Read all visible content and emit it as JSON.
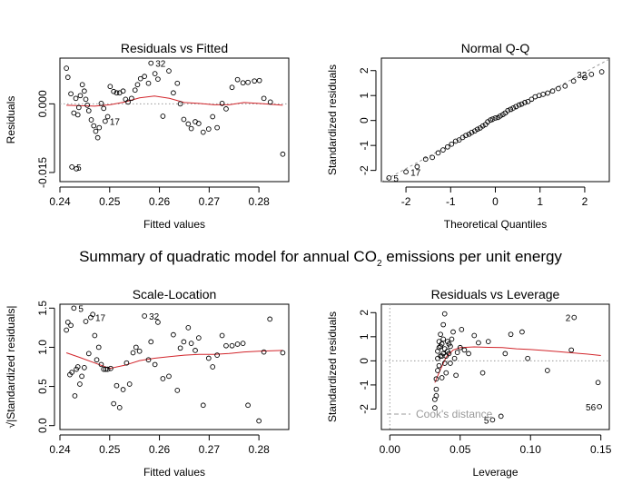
{
  "figure": {
    "title_prefix": "Summary of quadratic model for annual CO",
    "title_subscript": "2",
    "title_suffix": " emissions per unit energy"
  },
  "chart_data": [
    {
      "type": "scatter",
      "title": "Residuals vs Fitted",
      "xlabel": "Fitted values",
      "ylabel": "Residuals",
      "xlim": [
        0.24,
        0.286
      ],
      "ylim": [
        -0.017,
        0.01
      ],
      "xticks": [
        0.24,
        0.25,
        0.26,
        0.27,
        0.28
      ],
      "xtick_labels": [
        "0.24",
        "0.25",
        "0.26",
        "0.27",
        "0.28"
      ],
      "yticks": [
        0.0,
        -0.015
      ],
      "ytick_labels": [
        "0.000",
        "-0.015"
      ],
      "x": [
        0.2413,
        0.2416,
        0.2422,
        0.2424,
        0.2428,
        0.2432,
        0.2433,
        0.2436,
        0.2438,
        0.2441,
        0.2445,
        0.2449,
        0.2452,
        0.2455,
        0.2458,
        0.2463,
        0.2468,
        0.2472,
        0.2476,
        0.2479,
        0.2483,
        0.2488,
        0.2491,
        0.2496,
        0.2501,
        0.2508,
        0.2514,
        0.252,
        0.2527,
        0.2532,
        0.2537,
        0.2544,
        0.2551,
        0.2556,
        0.2562,
        0.257,
        0.2578,
        0.2583,
        0.2591,
        0.2597,
        0.2607,
        0.2619,
        0.2628,
        0.2636,
        0.2642,
        0.2649,
        0.2658,
        0.2664,
        0.2672,
        0.2679,
        0.2688,
        0.2699,
        0.2707,
        0.2716,
        0.2726,
        0.2734,
        0.2746,
        0.2757,
        0.2768,
        0.2778,
        0.2791,
        0.2801,
        0.281,
        0.2823,
        0.2848
      ],
      "y": [
        0.0078,
        0.0058,
        0.0022,
        -0.0138,
        -0.002,
        0.0012,
        -0.0142,
        -0.0024,
        -0.0008,
        0.0018,
        0.0042,
        0.0028,
        0.001,
        -0.0003,
        -0.0015,
        -0.0035,
        -0.0048,
        -0.006,
        -0.0074,
        -0.0052,
        0.0001,
        -0.001,
        -0.0038,
        -0.0028,
        0.0038,
        0.0027,
        0.0024,
        0.0024,
        0.0028,
        0.001,
        0.0004,
        0.0012,
        0.003,
        0.0042,
        0.0055,
        0.006,
        0.0045,
        0.0089,
        0.0066,
        0.0054,
        -0.0027,
        0.0072,
        0.0024,
        0.0045,
        0.0,
        -0.0034,
        -0.0044,
        -0.0054,
        -0.0039,
        -0.0043,
        -0.0062,
        -0.0055,
        -0.0028,
        -0.0052,
        0.0001,
        -0.0011,
        0.0036,
        0.0053,
        0.0046,
        0.0047,
        0.005,
        0.0051,
        0.0012,
        0.0004,
        -0.011
      ],
      "labels": [
        {
          "text": "5",
          "index": 3
        },
        {
          "text": "17",
          "index": 22
        },
        {
          "text": "32",
          "index": 37
        }
      ],
      "smooth_x": [
        0.2413,
        0.244,
        0.247,
        0.25,
        0.253,
        0.256,
        0.259,
        0.262,
        0.265,
        0.268,
        0.271,
        0.274,
        0.277,
        0.28,
        0.2848
      ],
      "smooth_y": [
        -0.0003,
        -0.0004,
        -0.0005,
        -0.0002,
        0.0004,
        0.0013,
        0.0017,
        0.0012,
        0.0003,
        0.0001,
        -0.0002,
        -0.0002,
        0.0003,
        0.0001,
        -0.0003
      ],
      "reference_y": 0.0
    },
    {
      "type": "scatter",
      "title": "Normal Q-Q",
      "xlabel": "Theoretical Quantiles",
      "ylabel": "Standardized residuals",
      "xlim": [
        -2.55,
        2.55
      ],
      "ylim": [
        -2.45,
        2.5
      ],
      "xticks": [
        -2,
        -1,
        0,
        1,
        2
      ],
      "xtick_labels": [
        "-2",
        "-1",
        "0",
        "1",
        "2"
      ],
      "yticks": [
        -2,
        -1,
        0,
        1,
        2
      ],
      "ytick_labels": [
        "-2",
        "-1",
        "0",
        "1",
        "2"
      ],
      "x": [
        -2.38,
        -2.0,
        -1.75,
        -1.56,
        -1.41,
        -1.28,
        -1.17,
        -1.07,
        -0.98,
        -0.89,
        -0.81,
        -0.73,
        -0.66,
        -0.59,
        -0.53,
        -0.46,
        -0.4,
        -0.34,
        -0.28,
        -0.22,
        -0.17,
        -0.11,
        -0.06,
        0.0,
        0.06,
        0.11,
        0.17,
        0.22,
        0.28,
        0.34,
        0.4,
        0.46,
        0.53,
        0.59,
        0.66,
        0.73,
        0.81,
        0.89,
        0.98,
        1.07,
        1.17,
        1.28,
        1.41,
        1.56,
        1.75,
        2.0,
        2.15,
        2.38
      ],
      "y": [
        -2.3,
        -2.06,
        -1.85,
        -1.55,
        -1.48,
        -1.3,
        -1.18,
        -1.06,
        -0.95,
        -0.83,
        -0.78,
        -0.68,
        -0.6,
        -0.55,
        -0.48,
        -0.42,
        -0.35,
        -0.3,
        -0.22,
        -0.16,
        -0.05,
        0.02,
        0.06,
        0.1,
        0.12,
        0.18,
        0.24,
        0.3,
        0.4,
        0.45,
        0.5,
        0.56,
        0.62,
        0.66,
        0.72,
        0.76,
        0.85,
        0.95,
        1.0,
        1.05,
        1.1,
        1.18,
        1.28,
        1.38,
        1.58,
        1.72,
        1.85,
        1.95
      ],
      "labels": [
        {
          "text": "5",
          "index": 0
        },
        {
          "text": "17",
          "index": 1
        },
        {
          "text": "32",
          "index": 46
        }
      ],
      "qqline": [
        [
          -2.55,
          -2.46
        ],
        [
          2.55,
          2.46
        ]
      ]
    },
    {
      "type": "scatter",
      "title": "Scale-Location",
      "xlabel": "Fitted values",
      "ylabel": "√|Standardized residuals|",
      "xlim": [
        0.24,
        0.286
      ],
      "ylim": [
        -0.05,
        1.55
      ],
      "xticks": [
        0.24,
        0.25,
        0.26,
        0.27,
        0.28
      ],
      "xtick_labels": [
        "0.24",
        "0.25",
        "0.26",
        "0.27",
        "0.28"
      ],
      "yticks": [
        0.0,
        0.5,
        1.0,
        1.5
      ],
      "ytick_labels": [
        "0.0",
        "0.5",
        "1.0",
        "1.5"
      ],
      "x": [
        0.2413,
        0.2416,
        0.242,
        0.2422,
        0.2424,
        0.2428,
        0.243,
        0.2433,
        0.2436,
        0.244,
        0.2444,
        0.2449,
        0.2452,
        0.2458,
        0.2462,
        0.2466,
        0.247,
        0.2474,
        0.2478,
        0.2483,
        0.2488,
        0.2492,
        0.2496,
        0.2502,
        0.2508,
        0.2514,
        0.252,
        0.2527,
        0.2534,
        0.254,
        0.2547,
        0.2553,
        0.256,
        0.257,
        0.2578,
        0.2583,
        0.2591,
        0.2597,
        0.2607,
        0.2619,
        0.2628,
        0.2636,
        0.2642,
        0.2649,
        0.2658,
        0.2664,
        0.2672,
        0.2679,
        0.2688,
        0.2699,
        0.2707,
        0.2716,
        0.2726,
        0.2734,
        0.2746,
        0.2757,
        0.2768,
        0.2778,
        0.28,
        0.281,
        0.2822,
        0.2848
      ],
      "y": [
        1.22,
        1.32,
        0.65,
        1.28,
        0.68,
        1.5,
        0.38,
        0.72,
        0.75,
        0.53,
        0.63,
        0.74,
        1.33,
        0.92,
        1.38,
        1.42,
        1.15,
        0.84,
        1.0,
        0.78,
        0.72,
        0.72,
        0.72,
        0.73,
        0.28,
        0.51,
        0.23,
        0.46,
        0.8,
        0.53,
        0.93,
        1.0,
        0.95,
        1.4,
        0.84,
        1.07,
        0.78,
        1.32,
        0.6,
        0.63,
        1.16,
        0.45,
        0.99,
        1.07,
        1.25,
        1.05,
        0.96,
        1.12,
        0.26,
        0.86,
        0.75,
        0.9,
        1.15,
        1.02,
        1.02,
        1.04,
        1.05,
        0.26,
        0.06,
        0.94,
        1.36,
        0.93
      ],
      "labels": [
        {
          "text": "5",
          "index": 5
        },
        {
          "text": "17",
          "index": 14
        },
        {
          "text": "32",
          "index": 33
        }
      ],
      "smooth_x": [
        0.2413,
        0.244,
        0.247,
        0.25,
        0.253,
        0.256,
        0.259,
        0.262,
        0.265,
        0.268,
        0.271,
        0.274,
        0.277,
        0.28,
        0.2848
      ],
      "smooth_y": [
        0.93,
        0.87,
        0.8,
        0.73,
        0.77,
        0.83,
        0.86,
        0.88,
        0.9,
        0.91,
        0.91,
        0.92,
        0.94,
        0.95,
        0.96
      ]
    },
    {
      "type": "scatter",
      "title": "Residuals vs Leverage",
      "xlabel": "Leverage",
      "ylabel": "Standardized residuals",
      "xlim": [
        -0.006,
        0.156
      ],
      "ylim": [
        -2.85,
        2.35
      ],
      "xticks": [
        0.0,
        0.05,
        0.1,
        0.15
      ],
      "xtick_labels": [
        "0.00",
        "0.05",
        "0.10",
        "0.15"
      ],
      "yticks": [
        -2,
        -1,
        0,
        1,
        2
      ],
      "ytick_labels": [
        "-2",
        "-1",
        "0",
        "1",
        "2"
      ],
      "x": [
        0.032,
        0.032,
        0.033,
        0.033,
        0.033,
        0.034,
        0.034,
        0.034,
        0.035,
        0.035,
        0.035,
        0.036,
        0.036,
        0.036,
        0.037,
        0.037,
        0.037,
        0.038,
        0.038,
        0.038,
        0.039,
        0.039,
        0.039,
        0.04,
        0.04,
        0.041,
        0.041,
        0.042,
        0.042,
        0.043,
        0.043,
        0.044,
        0.045,
        0.046,
        0.047,
        0.048,
        0.05,
        0.051,
        0.053,
        0.056,
        0.06,
        0.063,
        0.066,
        0.07,
        0.073,
        0.079,
        0.082,
        0.086,
        0.094,
        0.098,
        0.112,
        0.129,
        0.131,
        0.148,
        0.149
      ],
      "y": [
        -1.95,
        -1.6,
        -1.45,
        -1.18,
        -0.75,
        -0.4,
        0.1,
        0.4,
        0.55,
        -0.2,
        0.8,
        0.2,
        0.6,
        1.1,
        -0.7,
        0.2,
        0.7,
        1.5,
        0.3,
        0.9,
        -0.1,
        0.5,
        1.95,
        0.2,
        -0.5,
        0.8,
        0.4,
        0.7,
        0.3,
        -0.1,
        0.6,
        0.9,
        1.2,
        0.1,
        -0.6,
        0.35,
        0.55,
        1.3,
        0.45,
        0.3,
        1.05,
        0.75,
        -0.5,
        0.8,
        -2.45,
        -2.3,
        0.3,
        1.1,
        1.2,
        0.1,
        -0.4,
        0.45,
        1.8,
        -0.9,
        -1.9
      ],
      "labels": [
        {
          "text": "5",
          "index": 44
        },
        {
          "text": "2",
          "index": 52
        },
        {
          "text": "56",
          "index": 54
        }
      ],
      "smooth_x": [
        0.032,
        0.036,
        0.04,
        0.045,
        0.05,
        0.06,
        0.07,
        0.08,
        0.09,
        0.1,
        0.11,
        0.12,
        0.13,
        0.14,
        0.15
      ],
      "smooth_y": [
        -0.9,
        -0.35,
        0.15,
        0.45,
        0.55,
        0.58,
        0.56,
        0.55,
        0.5,
        0.47,
        0.43,
        0.38,
        0.33,
        0.28,
        0.22
      ],
      "reference_y": 0.0,
      "reference_x": 0.0,
      "legend": "Cook's distance"
    }
  ]
}
